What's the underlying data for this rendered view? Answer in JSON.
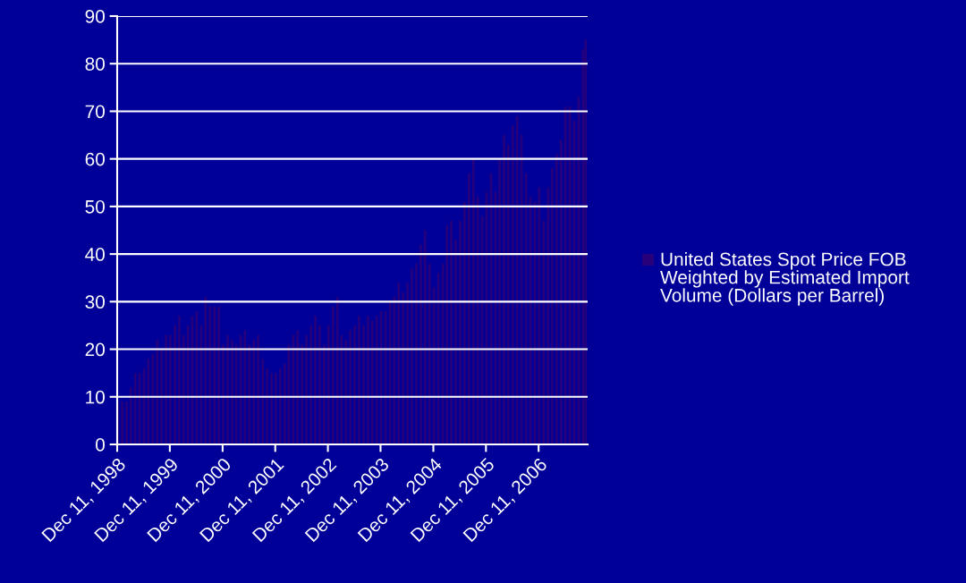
{
  "chart_data": {
    "type": "bar",
    "x": [
      "1998-12-15",
      "1999-01-15",
      "1999-02-15",
      "1999-03-15",
      "1999-04-15",
      "1999-05-15",
      "1999-06-15",
      "1999-07-15",
      "1999-08-15",
      "1999-09-15",
      "1999-10-15",
      "1999-11-15",
      "1999-12-15",
      "2000-01-15",
      "2000-02-15",
      "2000-03-15",
      "2000-04-15",
      "2000-05-15",
      "2000-06-15",
      "2000-07-15",
      "2000-08-15",
      "2000-09-15",
      "2000-10-15",
      "2000-11-15",
      "2000-12-15",
      "2001-01-15",
      "2001-02-15",
      "2001-03-15",
      "2001-04-15",
      "2001-05-15",
      "2001-06-15",
      "2001-07-15",
      "2001-08-15",
      "2001-09-15",
      "2001-10-15",
      "2001-11-15",
      "2001-12-15",
      "2002-01-15",
      "2002-02-15",
      "2002-03-15",
      "2002-04-15",
      "2002-05-15",
      "2002-06-15",
      "2002-07-15",
      "2002-08-15",
      "2002-09-15",
      "2002-10-15",
      "2002-11-15",
      "2002-12-15",
      "2003-01-15",
      "2003-02-15",
      "2003-03-15",
      "2003-04-15",
      "2003-05-15",
      "2003-06-15",
      "2003-07-15",
      "2003-08-15",
      "2003-09-15",
      "2003-10-15",
      "2003-11-15",
      "2003-12-15",
      "2004-01-15",
      "2004-02-15",
      "2004-03-15",
      "2004-04-15",
      "2004-05-15",
      "2004-06-15",
      "2004-07-15",
      "2004-08-15",
      "2004-09-15",
      "2004-10-15",
      "2004-11-15",
      "2004-12-15",
      "2005-01-15",
      "2005-02-15",
      "2005-03-15",
      "2005-04-15",
      "2005-05-15",
      "2005-06-15",
      "2005-07-15",
      "2005-08-15",
      "2005-09-15",
      "2005-10-15",
      "2005-11-15",
      "2005-12-15",
      "2006-01-15",
      "2006-02-15",
      "2006-03-15",
      "2006-04-15",
      "2006-05-15",
      "2006-06-15",
      "2006-07-15",
      "2006-08-15",
      "2006-09-15",
      "2006-10-15",
      "2006-11-15",
      "2006-12-15",
      "2007-01-15",
      "2007-02-15",
      "2007-03-15",
      "2007-04-15",
      "2007-05-15",
      "2007-06-15",
      "2007-07-15",
      "2007-08-15",
      "2007-09-15",
      "2007-10-15",
      "2007-11-02"
    ],
    "series": [
      {
        "name": "United States Spot Price FOB Weighted by Estimated Import Volume (Dollars per Barrel)",
        "color": "#28007a",
        "values": [
          9,
          9,
          9,
          12,
          15,
          15,
          16,
          18,
          19,
          22,
          20,
          23,
          23,
          25,
          27,
          23,
          25,
          27,
          28,
          25,
          31,
          29,
          29,
          29,
          21,
          23,
          22,
          21,
          23,
          24,
          21,
          22,
          23,
          18,
          16,
          15,
          15,
          16,
          17,
          21,
          23,
          24,
          21,
          23,
          25,
          27,
          25,
          21,
          25,
          29,
          31,
          23,
          22,
          24,
          25,
          27,
          25,
          27,
          26,
          27,
          28,
          28,
          30,
          31,
          34,
          32,
          34,
          37,
          38,
          42,
          45,
          38,
          33,
          36,
          38,
          46,
          47,
          43,
          47,
          51,
          57,
          60,
          52,
          48,
          53,
          57,
          53,
          60,
          65,
          63,
          67,
          69,
          65,
          57,
          52,
          51,
          54,
          47,
          54,
          58,
          61,
          64,
          71,
          71,
          68,
          73,
          83,
          85
        ]
      }
    ],
    "xlim": [
      "1998-12-11",
      "2007-11-16"
    ],
    "xticks": [
      {
        "value": "1998-12-11",
        "label": "Dec 11, 1998"
      },
      {
        "value": "1999-12-11",
        "label": "Dec 11, 1999"
      },
      {
        "value": "2000-12-11",
        "label": "Dec 11, 2000"
      },
      {
        "value": "2001-12-11",
        "label": "Dec 11, 2001"
      },
      {
        "value": "2002-12-11",
        "label": "Dec 11, 2002"
      },
      {
        "value": "2003-12-11",
        "label": "Dec 11, 2003"
      },
      {
        "value": "2004-12-11",
        "label": "Dec 11, 2004"
      },
      {
        "value": "2005-12-11",
        "label": "Dec 11, 2005"
      },
      {
        "value": "2006-12-11",
        "label": "Dec 11, 2006"
      }
    ],
    "ylim": [
      0,
      90
    ],
    "yticks": [
      0,
      10,
      20,
      30,
      40,
      50,
      60,
      70,
      80,
      90
    ],
    "grid": "y",
    "legend": "right"
  }
}
